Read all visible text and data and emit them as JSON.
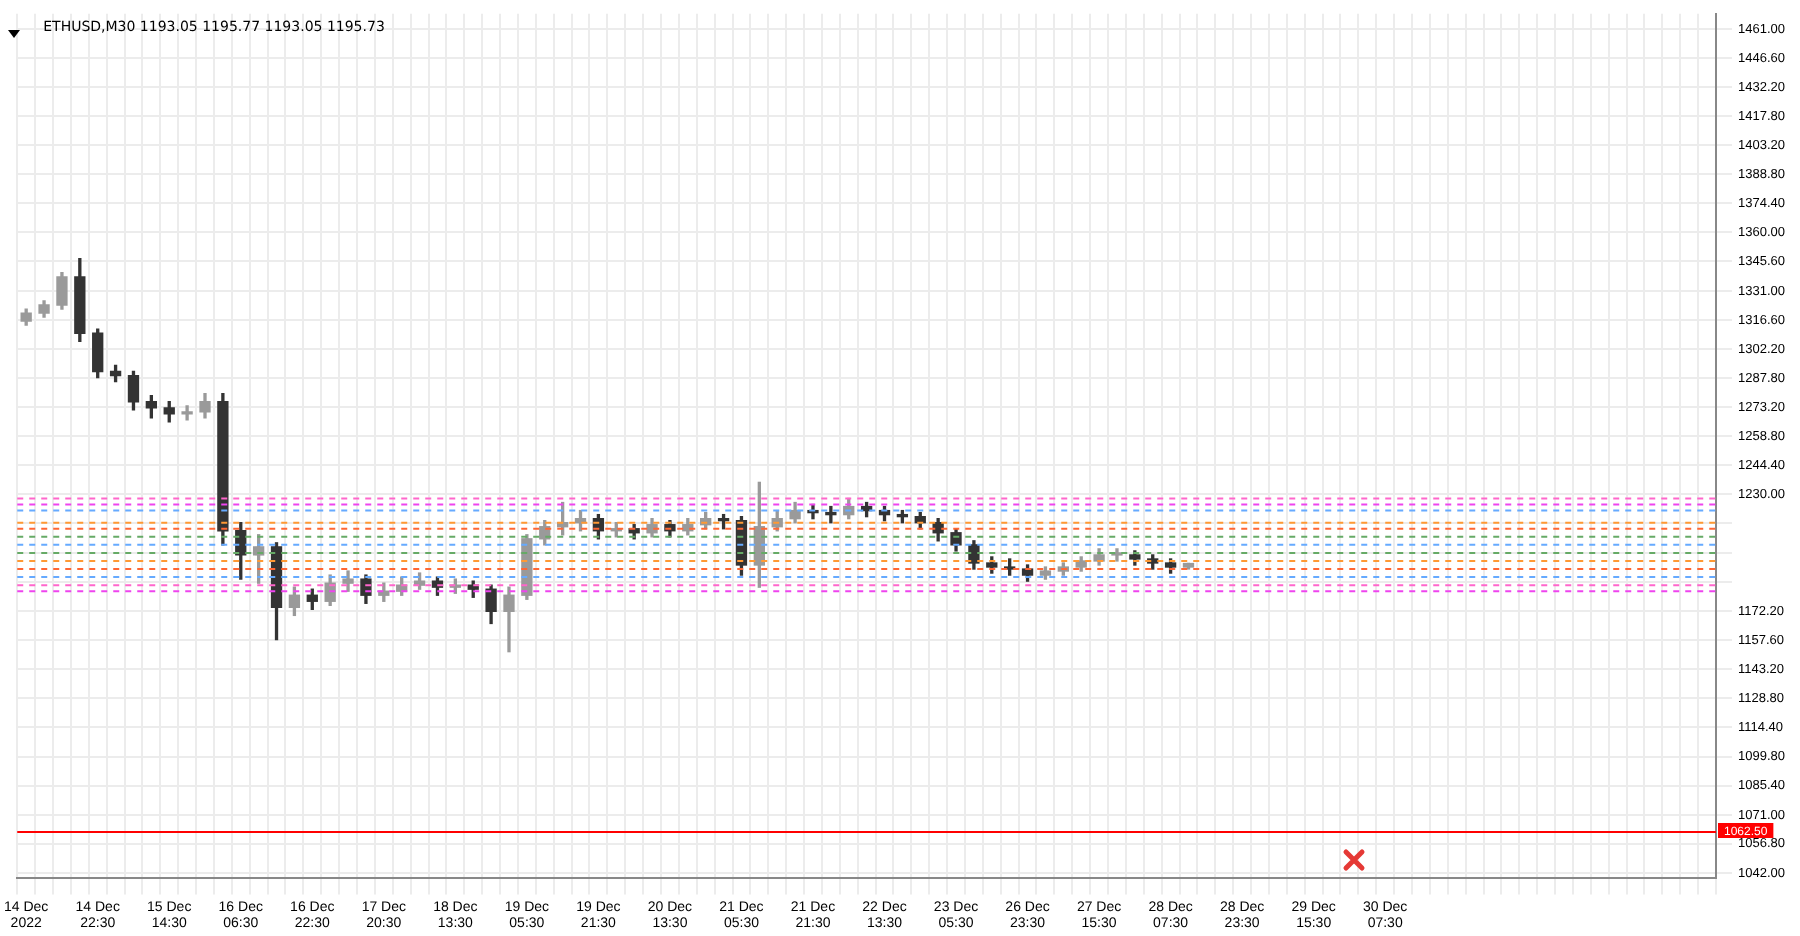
{
  "chart_data": {
    "type": "candlestick",
    "title": "ETHUSD,M30 1193.05 1195.77 1193.05 1195.73",
    "colors": [
      "#9a9a9a",
      "#9a9a9a",
      "#9a9a9a",
      "#333333",
      "#333333",
      "#333333",
      "#333333",
      "#333333",
      "#333333",
      "#9a9a9a",
      "#9a9a9a",
      "#333333",
      "#333333",
      "#9a9a9a",
      "#333333",
      "#9a9a9a",
      "#333333",
      "#9a9a9a",
      "#9a9a9a",
      "#333333",
      "#9a9a9a",
      "#9a9a9a",
      "#9a9a9a",
      "#333333",
      "#9a9a9a",
      "#333333",
      "#333333",
      "#9a9a9a",
      "#9a9a9a",
      "#9a9a9a",
      "#9a9a9a",
      "#9a9a9a",
      "#333333",
      "#9a9a9a",
      "#333333",
      "#9a9a9a",
      "#333333",
      "#9a9a9a",
      "#9a9a9a",
      "#333333",
      "#333333",
      "#9a9a9a",
      "#9a9a9a",
      "#9a9a9a",
      "#333333",
      "#333333",
      "#9a9a9a",
      "#333333",
      "#333333",
      "#333333",
      "#333333",
      "#333333",
      "#333333",
      "#333333",
      "#333333",
      "#333333",
      "#333333",
      "#9a9a9a",
      "#9a9a9a",
      "#9a9a9a",
      "#9a9a9a",
      "#9a9a9a",
      "#333333",
      "#333333",
      "#333333",
      "#9a9a9a",
      null,
      null,
      null,
      null,
      null,
      null,
      null,
      null,
      null,
      null,
      null,
      null,
      null,
      null,
      null,
      null,
      null,
      null,
      null,
      null,
      null,
      null,
      null,
      null,
      null,
      null,
      null,
      null,
      null
    ],
    "categories": [
      "14 Dec 2022",
      null,
      null,
      null,
      "14 Dec 22:30",
      null,
      null,
      null,
      "15 Dec 14:30",
      null,
      null,
      null,
      "16 Dec 06:30",
      null,
      null,
      null,
      "16 Dec 22:30",
      null,
      null,
      null,
      "17 Dec 20:30",
      null,
      null,
      null,
      "18 Dec 13:30",
      null,
      null,
      null,
      "19 Dec 05:30",
      null,
      null,
      null,
      "19 Dec 21:30",
      null,
      null,
      null,
      "20 Dec 13:30",
      null,
      null,
      null,
      "21 Dec 05:30",
      null,
      null,
      null,
      "21 Dec 21:30",
      null,
      null,
      null,
      "22 Dec 13:30",
      null,
      null,
      null,
      "23 Dec 05:30",
      null,
      null,
      null,
      "26 Dec 23:30",
      null,
      null,
      null,
      "27 Dec 15:30",
      null,
      null,
      null,
      "28 Dec 07:30",
      null,
      null,
      null,
      "28 Dec 23:30",
      null,
      null,
      null,
      "29 Dec 15:30",
      null,
      null,
      null,
      "30 Dec 07:30",
      null,
      null,
      null,
      null,
      null,
      null,
      null,
      null,
      null,
      null,
      null,
      null,
      null,
      null,
      null,
      null,
      null,
      null
    ],
    "ohlc": [
      [
        1316,
        1322,
        1314,
        1320
      ],
      [
        1320,
        1326,
        1318,
        1324
      ],
      [
        1324,
        1340,
        1322,
        1338
      ],
      [
        1338,
        1347,
        1306,
        1310
      ],
      [
        1310,
        1312,
        1288,
        1291
      ],
      [
        1291,
        1294,
        1286,
        1289
      ],
      [
        1289,
        1291,
        1272,
        1276
      ],
      [
        1276,
        1279,
        1268,
        1273
      ],
      [
        1273,
        1276,
        1266,
        1270
      ],
      [
        1270,
        1274,
        1267,
        1271
      ],
      [
        1271,
        1280,
        1268,
        1276
      ],
      [
        1276,
        1280,
        1205,
        1212
      ],
      [
        1212,
        1216,
        1188,
        1200
      ],
      [
        1200,
        1210,
        1186,
        1204
      ],
      [
        1204,
        1206,
        1158,
        1174
      ],
      [
        1174,
        1184,
        1170,
        1180
      ],
      [
        1180,
        1183,
        1173,
        1177
      ],
      [
        1177,
        1190,
        1175,
        1186
      ],
      [
        1186,
        1192,
        1182,
        1188
      ],
      [
        1188,
        1190,
        1176,
        1180
      ],
      [
        1180,
        1186,
        1177,
        1182
      ],
      [
        1182,
        1189,
        1180,
        1185
      ],
      [
        1185,
        1191,
        1183,
        1187
      ],
      [
        1187,
        1189,
        1180,
        1184
      ],
      [
        1184,
        1188,
        1181,
        1185
      ],
      [
        1185,
        1187,
        1179,
        1183
      ],
      [
        1183,
        1185,
        1166,
        1172
      ],
      [
        1172,
        1184,
        1152,
        1180
      ],
      [
        1180,
        1210,
        1178,
        1208
      ],
      [
        1208,
        1217,
        1205,
        1214
      ],
      [
        1214,
        1226,
        1210,
        1216
      ],
      [
        1216,
        1222,
        1212,
        1218
      ],
      [
        1218,
        1220,
        1208,
        1212
      ],
      [
        1212,
        1216,
        1209,
        1213
      ],
      [
        1213,
        1215,
        1208,
        1211
      ],
      [
        1211,
        1218,
        1209,
        1215
      ],
      [
        1215,
        1217,
        1209,
        1212
      ],
      [
        1212,
        1218,
        1210,
        1215
      ],
      [
        1215,
        1221,
        1213,
        1218
      ],
      [
        1218,
        1220,
        1213,
        1217
      ],
      [
        1217,
        1219,
        1190,
        1195
      ],
      [
        1195,
        1236,
        1184,
        1214
      ],
      [
        1214,
        1222,
        1212,
        1218
      ],
      [
        1218,
        1226,
        1216,
        1222
      ],
      [
        1222,
        1225,
        1218,
        1221
      ],
      [
        1221,
        1224,
        1216,
        1220
      ],
      [
        1220,
        1228,
        1218,
        1224
      ],
      [
        1224,
        1226,
        1219,
        1222
      ],
      [
        1222,
        1224,
        1217,
        1220
      ],
      [
        1220,
        1222,
        1216,
        1219
      ],
      [
        1219,
        1221,
        1213,
        1216
      ],
      [
        1216,
        1218,
        1207,
        1211
      ],
      [
        1211,
        1213,
        1202,
        1205
      ],
      [
        1205,
        1207,
        1193,
        1196
      ],
      [
        1196,
        1199,
        1191,
        1194
      ],
      [
        1194,
        1198,
        1190,
        1193
      ],
      [
        1193,
        1195,
        1187,
        1190
      ],
      [
        1190,
        1194,
        1188,
        1192
      ],
      [
        1192,
        1196,
        1190,
        1194
      ],
      [
        1194,
        1199,
        1192,
        1197
      ],
      [
        1197,
        1203,
        1195,
        1200
      ],
      [
        1200,
        1203,
        1197,
        1200
      ],
      [
        1200,
        1202,
        1195,
        1198
      ],
      [
        1198,
        1200,
        1193,
        1196
      ],
      [
        1196,
        1198,
        1191,
        1194
      ],
      [
        1194,
        1195.77,
        1193.05,
        1195.73
      ],
      null,
      null,
      null,
      null,
      null,
      null,
      null,
      null,
      null,
      null,
      null,
      null,
      null,
      null,
      null,
      null,
      null,
      null,
      null,
      null,
      null,
      null,
      null,
      null,
      null,
      null,
      null,
      null,
      null
    ],
    "ylim": [
      1039.5,
      1468.5
    ],
    "yticks": [
      {
        "value": 1042,
        "label": "1042.00"
      },
      {
        "value": 1056.8,
        "label": "1056.80"
      },
      {
        "value": 1071,
        "label": "1071.00"
      },
      {
        "value": 1085.4,
        "label": "1085.40"
      },
      {
        "value": 1099.8,
        "label": "1099.80"
      },
      {
        "value": 1114.4,
        "label": "1114.40"
      },
      {
        "value": 1128.8,
        "label": "1128.80"
      },
      {
        "value": 1143.2,
        "label": "1143.20"
      },
      {
        "value": 1157.6,
        "label": "1157.60"
      },
      {
        "value": 1172.2,
        "label": "1172.20"
      },
      {
        "value": 1186.6,
        "label": null
      },
      {
        "value": 1201.2,
        "label": null
      },
      {
        "value": 1215.6,
        "label": null
      },
      {
        "value": 1230,
        "label": "1230.00"
      },
      {
        "value": 1244.4,
        "label": "1244.40"
      },
      {
        "value": 1258.8,
        "label": "1258.80"
      },
      {
        "value": 1273.2,
        "label": "1273.20"
      },
      {
        "value": 1287.8,
        "label": "1287.80"
      },
      {
        "value": 1302.2,
        "label": "1302.20"
      },
      {
        "value": 1316.6,
        "label": "1316.60"
      },
      {
        "value": 1331,
        "label": "1331.00"
      },
      {
        "value": 1345.6,
        "label": "1345.60"
      },
      {
        "value": 1360,
        "label": "1360.00"
      },
      {
        "value": 1374.4,
        "label": "1374.40"
      },
      {
        "value": 1388.8,
        "label": "1388.80"
      },
      {
        "value": 1403.2,
        "label": "1403.20"
      },
      {
        "value": 1417.8,
        "label": "1417.80"
      },
      {
        "value": 1432.2,
        "label": "1432.20"
      },
      {
        "value": 1446.6,
        "label": "1446.60"
      },
      {
        "value": 1461,
        "label": "1461.00"
      }
    ],
    "grid": true,
    "legend": false,
    "ref_lines": [
      {
        "axis": "y",
        "value": 1062.5,
        "label": "1062.50",
        "color": "#ff0000",
        "line_style": "solid"
      },
      {
        "axis": "y",
        "value": 1228,
        "color": "#ff66cc",
        "line_style": "dashed"
      },
      {
        "axis": "y",
        "value": 1225,
        "color": "#ee44ee",
        "line_style": "dashed"
      },
      {
        "axis": "y",
        "value": 1222,
        "color": "#66aaff",
        "line_style": "dashed"
      },
      {
        "axis": "y",
        "value": 1216,
        "color": "#ff9933",
        "line_style": "dashed"
      },
      {
        "axis": "y",
        "value": 1213,
        "color": "#ff6633",
        "line_style": "dashed"
      },
      {
        "axis": "y",
        "value": 1209,
        "color": "#66aa66",
        "line_style": "dashed"
      },
      {
        "axis": "y",
        "value": 1205,
        "color": "#66aaff",
        "line_style": "dashed"
      },
      {
        "axis": "y",
        "value": 1201,
        "color": "#66aa66",
        "line_style": "dashed"
      },
      {
        "axis": "y",
        "value": 1197,
        "color": "#ff9933",
        "line_style": "dashed"
      },
      {
        "axis": "y",
        "value": 1193,
        "color": "#ff6633",
        "line_style": "dashed"
      },
      {
        "axis": "y",
        "value": 1189,
        "color": "#66aaff",
        "line_style": "dashed"
      },
      {
        "axis": "y",
        "value": 1185,
        "color": "#ff66cc",
        "line_style": "dashed"
      },
      {
        "axis": "y",
        "value": 1182,
        "color": "#ee44ee",
        "line_style": "dashed"
      }
    ]
  }
}
